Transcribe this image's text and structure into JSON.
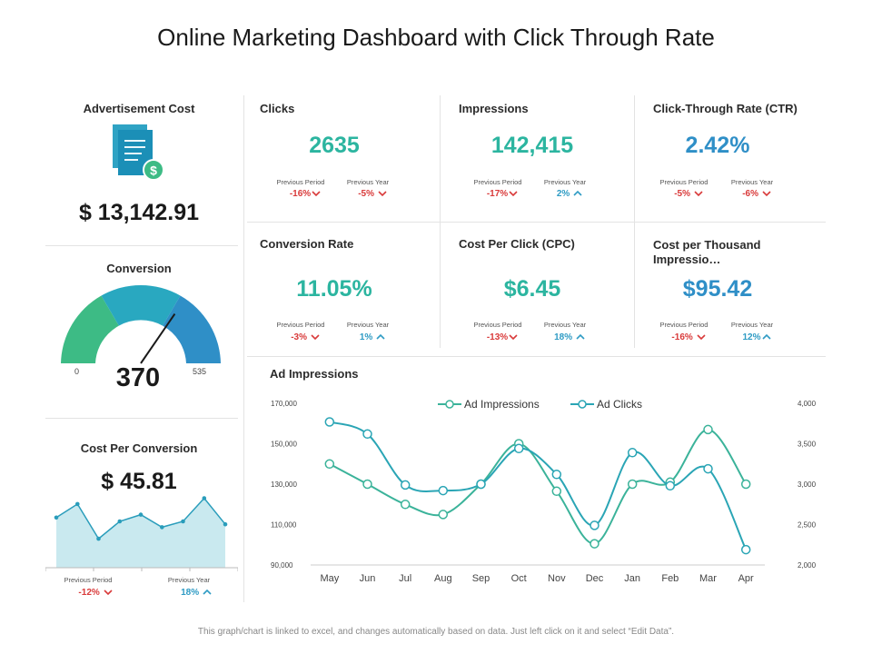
{
  "page_title": "Online Marketing Dashboard with Click Through Rate",
  "colors": {
    "teal": "#2cb5a0",
    "blue": "#2f8fc7",
    "green": "#3dbb85",
    "mid_teal": "#29a8c0",
    "red": "#d93a3a"
  },
  "ad_cost": {
    "label": "Advertisement Cost",
    "value": "$ 13,142.91",
    "icon": "invoice-dollar-icon"
  },
  "conversion": {
    "label": "Conversion",
    "value": "370",
    "min": "0",
    "max": "535",
    "gauge_value": 370,
    "gauge_max": 535
  },
  "cost_per_conversion": {
    "label": "Cost Per Conversion",
    "value": "$ 45.81",
    "sparkline": [
      52,
      66,
      30,
      48,
      55,
      42,
      48,
      72,
      45
    ],
    "previous_period": {
      "label": "Previous Period",
      "delta": "-12%"
    },
    "previous_year": {
      "label": "Previous Year",
      "delta": "18%"
    }
  },
  "kpis": {
    "clicks": {
      "label": "Clicks",
      "value": "2635",
      "pp_label": "Previous Period",
      "pp_delta": "-16%",
      "py_label": "Previous Year",
      "py_delta": "-5%"
    },
    "impressions": {
      "label": "Impressions",
      "value": "142,415",
      "pp_label": "Previous Period",
      "pp_delta": "-17%",
      "py_label": "Previous Year",
      "py_delta": "2%"
    },
    "ctr": {
      "label": "Click-Through Rate (CTR)",
      "value": "2.42%",
      "pp_label": "Previous Period",
      "pp_delta": "-5%",
      "py_label": "Previous Year",
      "py_delta": "-6%"
    },
    "conversion_rate": {
      "label": "Conversion Rate",
      "value": "11.05%",
      "pp_label": "Previous Period",
      "pp_delta": "-3%",
      "py_label": "Previous Year",
      "py_delta": "1%"
    },
    "cpc": {
      "label": "Cost Per Click (CPC)",
      "value": "$6.45",
      "pp_label": "Previous Period",
      "pp_delta": "-13%",
      "py_label": "Previous Year",
      "py_delta": "18%"
    },
    "cpm": {
      "label_line1": "Cost per Thousand",
      "label_line2": "Impressio…",
      "value": "$95.42",
      "pp_label": "Previous Period",
      "pp_delta": "-16%",
      "py_label": "Previous Year",
      "py_delta": "12%"
    }
  },
  "chart_data": {
    "type": "line",
    "title": "Ad Impressions",
    "categories": [
      "May",
      "Jun",
      "Jul",
      "Aug",
      "Sep",
      "Oct",
      "Nov",
      "Dec",
      "Jan",
      "Feb",
      "Mar",
      "Apr"
    ],
    "y_left": {
      "ticks": [
        "170,000",
        "150,000",
        "130,000",
        "110,000",
        "90,000"
      ],
      "ylim": [
        90000,
        170000
      ]
    },
    "y_right": {
      "ticks": [
        "4,000",
        "3,500",
        "3,000",
        "2,500",
        "2,000"
      ],
      "ylim": [
        2000,
        4000
      ]
    },
    "legend_position": "top",
    "series": [
      {
        "name": "Ad Impressions",
        "axis": "left",
        "color": "#3bb39a",
        "values": [
          140000,
          130000,
          120000,
          115000,
          130000,
          150000,
          126500,
          100500,
          130000,
          131000,
          157000,
          130000
        ]
      },
      {
        "name": "Ad Clicks",
        "axis": "right",
        "color": "#2aa5b5",
        "values": [
          3770,
          3620,
          2990,
          2920,
          3000,
          3440,
          3120,
          2490,
          3390,
          2980,
          3190,
          2190
        ]
      }
    ],
    "grid": false
  },
  "footnote": "This graph/chart is linked to excel, and changes automatically based on data. Just left click on it and select “Edit Data”."
}
